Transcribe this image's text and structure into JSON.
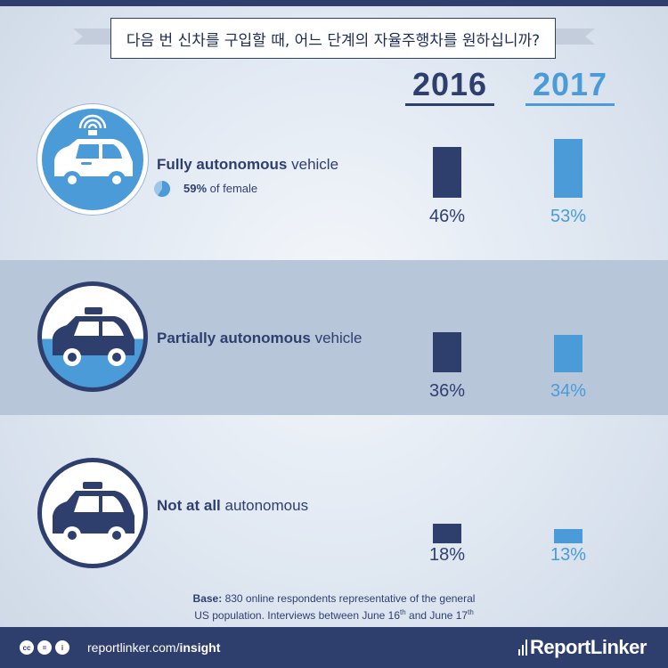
{
  "title": "다음 번 신차를 구입할 때, 어느 단계의 자율주행차를 원하십니까?",
  "years": [
    "2016",
    "2017"
  ],
  "colors": {
    "year_2016": "#2e3f6e",
    "year_2017": "#4a9bd8"
  },
  "categories": [
    {
      "label_bold": "Fully autonomous",
      "label_rest": " vehicle",
      "icon": "self-driving-car-sensor-icon"
    },
    {
      "label_bold": "Partially  autonomous",
      "label_rest": " vehicle",
      "icon": "taxi-car-icon"
    },
    {
      "label_bold": "Not at all",
      "label_rest": " autonomous",
      "icon": "car-icon"
    }
  ],
  "female_note": {
    "value": "59%",
    "text": " of female",
    "fraction": 0.59
  },
  "chart_data": {
    "type": "bar",
    "title": "다음 번 신차를 구입할 때, 어느 단계의 자율주행차를 원하십니까?",
    "categories": [
      "Fully autonomous vehicle",
      "Partially autonomous vehicle",
      "Not at all autonomous"
    ],
    "series": [
      {
        "name": "2016",
        "values": [
          46,
          36,
          18
        ],
        "labels": [
          "46%",
          "36%",
          "18%"
        ]
      },
      {
        "name": "2017",
        "values": [
          53,
          34,
          13
        ],
        "labels": [
          "53%",
          "34%",
          "13%"
        ]
      }
    ],
    "unit": "%"
  },
  "base": {
    "label": "Base:",
    "line1_rest": " 830 online respondents representative of the general",
    "line2_a": "US population. Interviews between June 16",
    "sup1": "th",
    "line2_b": " and June 17",
    "sup2": "th"
  },
  "footer": {
    "site_a": "reportlinker.com/",
    "site_b": "insight",
    "brand": "ReportLinker",
    "cc_icons": [
      "cc",
      "=",
      "i"
    ]
  }
}
